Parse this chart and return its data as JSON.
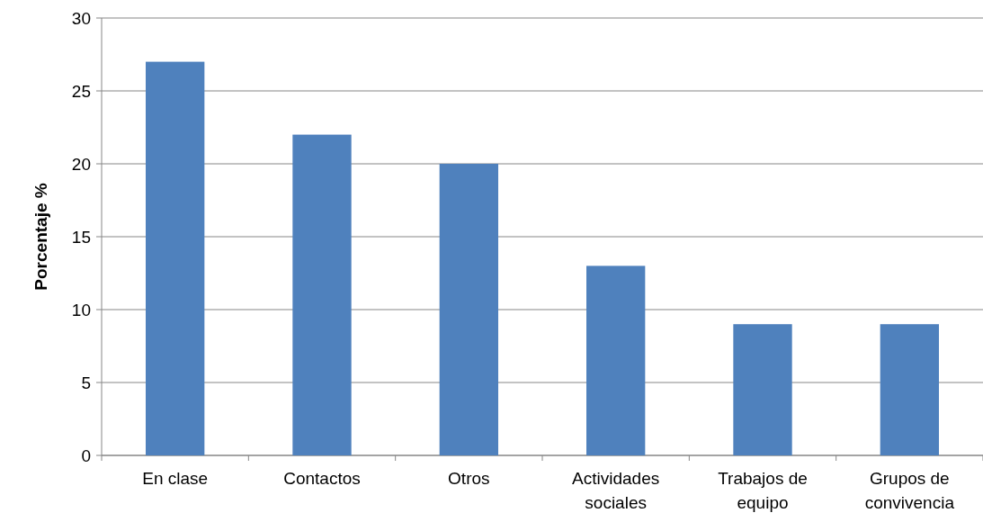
{
  "chart_data": {
    "type": "bar",
    "ylabel": "Porcentaje %",
    "categories": [
      "En clase",
      "Contactos",
      "Otros",
      "Actividades sociales",
      "Trabajos de equipo",
      "Grupos de convivencia"
    ],
    "values": [
      27,
      22,
      20,
      13,
      9,
      9
    ],
    "color": "#4f81bd",
    "ylim": [
      0,
      30
    ],
    "yticks": [
      0,
      5,
      10,
      15,
      20,
      25,
      30
    ],
    "grid": "y"
  }
}
